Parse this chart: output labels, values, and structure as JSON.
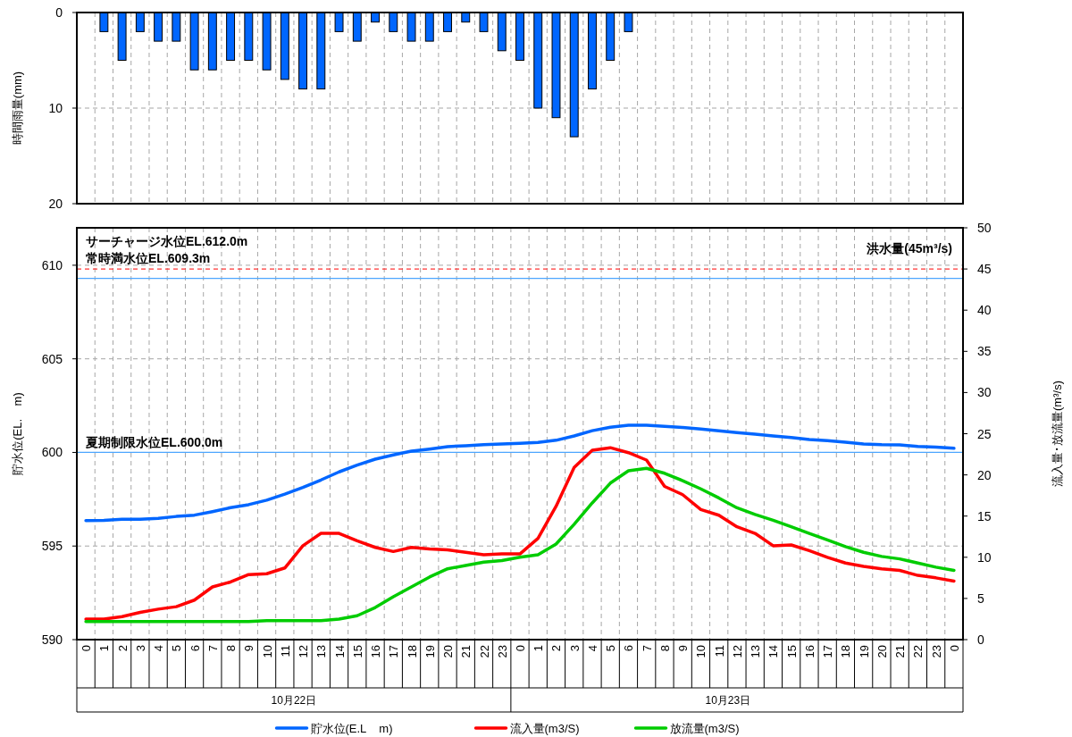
{
  "chart_data": [
    {
      "type": "bar",
      "ylabel": "時間雨量(mm)",
      "categories": [
        null,
        null,
        null,
        null,
        null,
        null,
        null,
        null,
        null,
        null,
        null,
        null,
        null,
        null,
        null,
        null,
        null,
        null,
        null,
        null,
        null,
        null,
        null,
        null,
        null,
        null,
        null,
        null,
        null,
        null,
        null,
        null,
        null,
        null,
        null,
        null,
        null,
        null,
        null,
        null,
        null,
        null,
        null,
        null,
        null,
        null,
        null,
        null,
        null
      ],
      "series": [
        {
          "color": "#0066ff",
          "values": [
            null,
            2,
            5,
            2,
            3,
            3,
            6,
            6,
            5,
            5,
            6,
            7,
            8,
            8,
            2,
            3,
            1,
            2,
            3,
            3,
            2,
            1,
            2,
            4,
            5,
            10,
            11,
            13,
            8,
            5,
            2,
            null,
            null,
            null,
            null,
            null,
            null,
            null,
            null,
            null,
            null,
            null,
            null,
            null,
            null,
            null,
            null,
            null,
            null
          ]
        }
      ],
      "ylim": [
        20,
        0
      ],
      "yticks": [
        0,
        10,
        20
      ],
      "grid": true,
      "tick_labels": "y"
    },
    {
      "type": "line",
      "ylabel": "貯水位(EL.    m)",
      "y2label": "流入量･放流量(m³/s)",
      "categories": [
        "0",
        "1",
        "2",
        "3",
        "4",
        "5",
        "6",
        "7",
        "8",
        "9",
        "10",
        "11",
        "12",
        "13",
        "14",
        "15",
        "16",
        "17",
        "18",
        "19",
        "20",
        "21",
        "22",
        "23",
        "0",
        "1",
        "2",
        "3",
        "4",
        "5",
        "6",
        "7",
        "8",
        "9",
        "10",
        "11",
        "12",
        "13",
        "14",
        "15",
        "16",
        "17",
        "18",
        "19",
        "20",
        "21",
        "22",
        "23",
        "0"
      ],
      "series": [
        {
          "name": "貯水位(E.L    m)",
          "color": "#0066ff",
          "values": [
            596.36,
            596.37,
            596.43,
            596.43,
            596.48,
            596.58,
            596.65,
            596.84,
            597.05,
            597.21,
            597.45,
            597.77,
            598.13,
            598.53,
            598.96,
            599.32,
            599.64,
            599.87,
            600.07,
            600.18,
            600.31,
            600.36,
            600.42,
            600.45,
            600.49,
            600.53,
            600.65,
            600.88,
            601.16,
            601.35,
            601.45,
            601.45,
            601.39,
            601.33,
            601.25,
            601.16,
            601.06,
            600.98,
            600.88,
            600.8,
            600.69,
            600.63,
            600.55,
            600.45,
            600.41,
            600.4,
            600.32,
            600.28,
            600.22
          ]
        },
        {
          "name": "流入量(m3/S)",
          "color": "#ff0000",
          "axis": "y2",
          "values": [
            2.5,
            2.5,
            2.8,
            3.3,
            3.7,
            4.0,
            4.8,
            6.4,
            7.0,
            7.9,
            8.0,
            8.7,
            11.4,
            12.9,
            12.9,
            12.0,
            11.2,
            10.7,
            11.2,
            11.0,
            10.9,
            10.6,
            10.3,
            10.4,
            10.4,
            12.3,
            16.2,
            20.9,
            23.0,
            23.3,
            22.7,
            21.8,
            18.6,
            17.6,
            15.8,
            15.1,
            13.7,
            12.9,
            11.4,
            11.5,
            10.8,
            10.0,
            9.3,
            8.9,
            8.6,
            8.4,
            7.8,
            7.5,
            7.1
          ]
        },
        {
          "name": "放流量(m3/S)",
          "color": "#00cc00",
          "axis": "y2",
          "values": [
            2.2,
            2.2,
            2.2,
            2.2,
            2.2,
            2.2,
            2.2,
            2.2,
            2.2,
            2.2,
            2.3,
            2.3,
            2.3,
            2.3,
            2.5,
            2.9,
            3.9,
            5.2,
            6.4,
            7.6,
            8.6,
            9.0,
            9.4,
            9.6,
            10.0,
            10.3,
            11.6,
            14.0,
            16.6,
            19.0,
            20.5,
            20.8,
            20.2,
            19.3,
            18.3,
            17.2,
            16.0,
            15.2,
            14.5,
            13.7,
            12.9,
            12.1,
            11.3,
            10.6,
            10.1,
            9.8,
            9.3,
            8.8,
            8.4
          ]
        }
      ],
      "ylim": [
        590,
        612
      ],
      "yticks": [
        590,
        595,
        600,
        605,
        610
      ],
      "y2lim": [
        0,
        50
      ],
      "y2ticks": [
        0,
        5,
        10,
        15,
        20,
        25,
        30,
        35,
        40,
        45,
        50
      ],
      "ref_lines": [
        {
          "axis": "y",
          "value": 609.3,
          "label": "常時満水位EL.609.3m",
          "color": "#4da6ff"
        },
        {
          "axis": "y",
          "value": 600,
          "label": "夏期制限水位EL.600.0m",
          "color": "#4da6ff"
        },
        {
          "axis": "y2",
          "value": 45,
          "label": "洪水量(45m³/s)",
          "color": "#ff3333",
          "line_style": "dashed"
        }
      ],
      "annotations": [
        "サーチャージ水位EL.612.0m",
        "10月22日",
        "10月23日"
      ],
      "grid": true,
      "legend": "bottom"
    }
  ]
}
